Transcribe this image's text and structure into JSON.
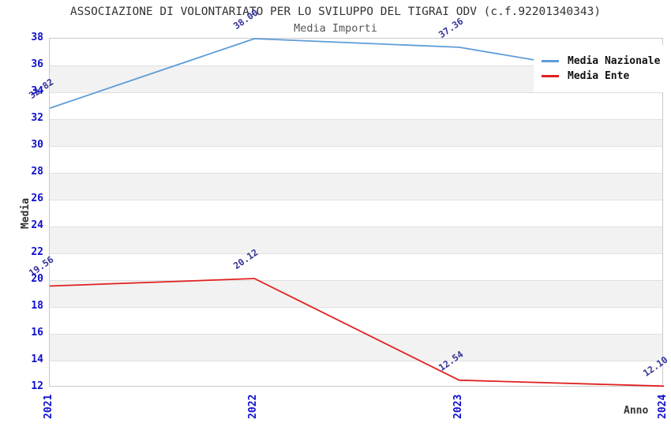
{
  "title": "ASSOCIAZIONE DI VOLONTARIATO PER LO SVILUPPO DEL TIGRAI ODV (c.f.92201340343)",
  "subtitle": "Media Importi",
  "chart_data": {
    "type": "line",
    "x": [
      "2021",
      "2022",
      "2023",
      "2024"
    ],
    "series": [
      {
        "name": "Media Nazionale",
        "color": "#5E9CD8",
        "values": [
          32.82,
          38.0,
          37.36,
          34.79
        ]
      },
      {
        "name": "Media Ente",
        "color": "#E02020",
        "values": [
          19.56,
          20.12,
          12.54,
          12.1
        ]
      }
    ],
    "xlabel": "Anno",
    "ylabel": "Media",
    "ylim": [
      12,
      38
    ],
    "ytick_step": 2,
    "grid": "horizontal gridlines with alternating shaded bands",
    "legend_position": "top-right",
    "point_labels_shown": true,
    "point_label_format": "2-decimals"
  },
  "colors": {
    "tick_label": "#0E0ECD",
    "point_label": "#333399",
    "band_shade": "#F2F2F2",
    "gridline": "#E0E0E0",
    "plot_border": "#C9C9C9",
    "title": "#333333",
    "subtitle": "#555555"
  }
}
